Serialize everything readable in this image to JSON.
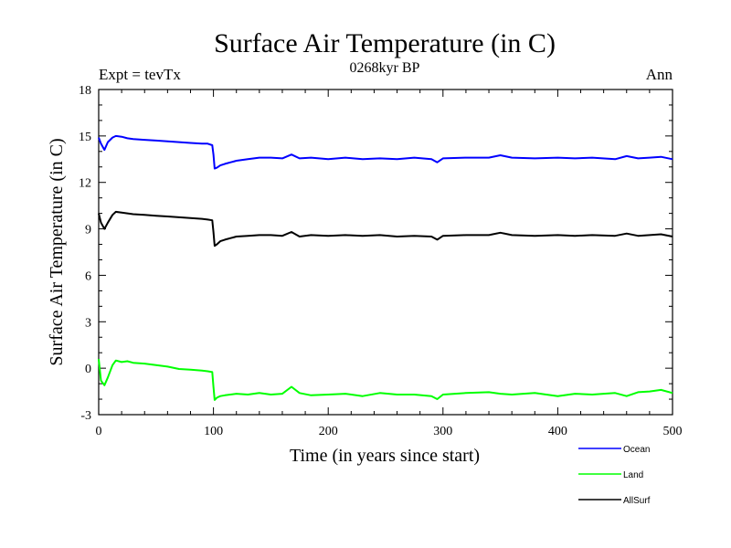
{
  "chart_data": {
    "type": "line",
    "title": "Surface Air Temperature (in C)",
    "subtitle": "0268kyr BP",
    "left_label": "Expt = tevTx",
    "right_label": "Ann",
    "xlabel": "Time (in years since start)",
    "ylabel": "Surface Air Temperature (in C)",
    "xlim": [
      0,
      500
    ],
    "ylim": [
      -3,
      18
    ],
    "xticks": [
      0,
      100,
      200,
      300,
      400,
      500
    ],
    "yticks": [
      -3,
      0,
      3,
      6,
      9,
      12,
      15,
      18
    ],
    "grid": false,
    "legend_position": "bottom-right, below plot",
    "x": [
      0,
      2,
      5,
      8,
      12,
      15,
      20,
      25,
      30,
      40,
      50,
      60,
      70,
      80,
      90,
      95,
      99,
      100,
      101,
      103,
      106,
      110,
      120,
      130,
      140,
      150,
      160,
      168,
      175,
      185,
      200,
      215,
      230,
      245,
      260,
      275,
      290,
      295,
      300,
      320,
      340,
      350,
      360,
      380,
      400,
      415,
      430,
      450,
      460,
      470,
      480,
      490,
      500
    ],
    "series": [
      {
        "name": "Ocean",
        "color": "#0000ff",
        "values": [
          14.9,
          14.5,
          14.1,
          14.6,
          14.9,
          15.0,
          14.95,
          14.85,
          14.8,
          14.75,
          14.7,
          14.65,
          14.6,
          14.55,
          14.5,
          14.5,
          14.4,
          13.8,
          12.9,
          12.95,
          13.1,
          13.2,
          13.4,
          13.5,
          13.6,
          13.6,
          13.55,
          13.8,
          13.55,
          13.6,
          13.5,
          13.6,
          13.5,
          13.55,
          13.5,
          13.6,
          13.5,
          13.3,
          13.55,
          13.6,
          13.6,
          13.75,
          13.6,
          13.55,
          13.6,
          13.55,
          13.6,
          13.5,
          13.7,
          13.55,
          13.6,
          13.65,
          13.5
        ]
      },
      {
        "name": "Land",
        "color": "#00ff00",
        "values": [
          0.6,
          -0.8,
          -1.1,
          -0.6,
          0.2,
          0.5,
          0.4,
          0.45,
          0.35,
          0.3,
          0.2,
          0.1,
          -0.05,
          -0.1,
          -0.15,
          -0.2,
          -0.25,
          -1.2,
          -2.05,
          -1.9,
          -1.8,
          -1.75,
          -1.65,
          -1.7,
          -1.6,
          -1.7,
          -1.65,
          -1.2,
          -1.6,
          -1.75,
          -1.7,
          -1.65,
          -1.8,
          -1.6,
          -1.7,
          -1.7,
          -1.8,
          -2.0,
          -1.7,
          -1.6,
          -1.55,
          -1.65,
          -1.7,
          -1.6,
          -1.8,
          -1.65,
          -1.7,
          -1.6,
          -1.8,
          -1.55,
          -1.5,
          -1.4,
          -1.6
        ]
      },
      {
        "name": "AllSurf",
        "color": "#000000",
        "values": [
          10.0,
          9.4,
          9.0,
          9.4,
          9.9,
          10.1,
          10.05,
          10.0,
          9.95,
          9.9,
          9.85,
          9.8,
          9.75,
          9.7,
          9.65,
          9.6,
          9.55,
          8.8,
          7.9,
          8.0,
          8.2,
          8.3,
          8.5,
          8.55,
          8.6,
          8.6,
          8.55,
          8.8,
          8.5,
          8.6,
          8.55,
          8.6,
          8.55,
          8.6,
          8.5,
          8.55,
          8.5,
          8.3,
          8.55,
          8.6,
          8.6,
          8.75,
          8.6,
          8.55,
          8.6,
          8.55,
          8.6,
          8.55,
          8.7,
          8.55,
          8.6,
          8.65,
          8.5
        ]
      }
    ]
  }
}
